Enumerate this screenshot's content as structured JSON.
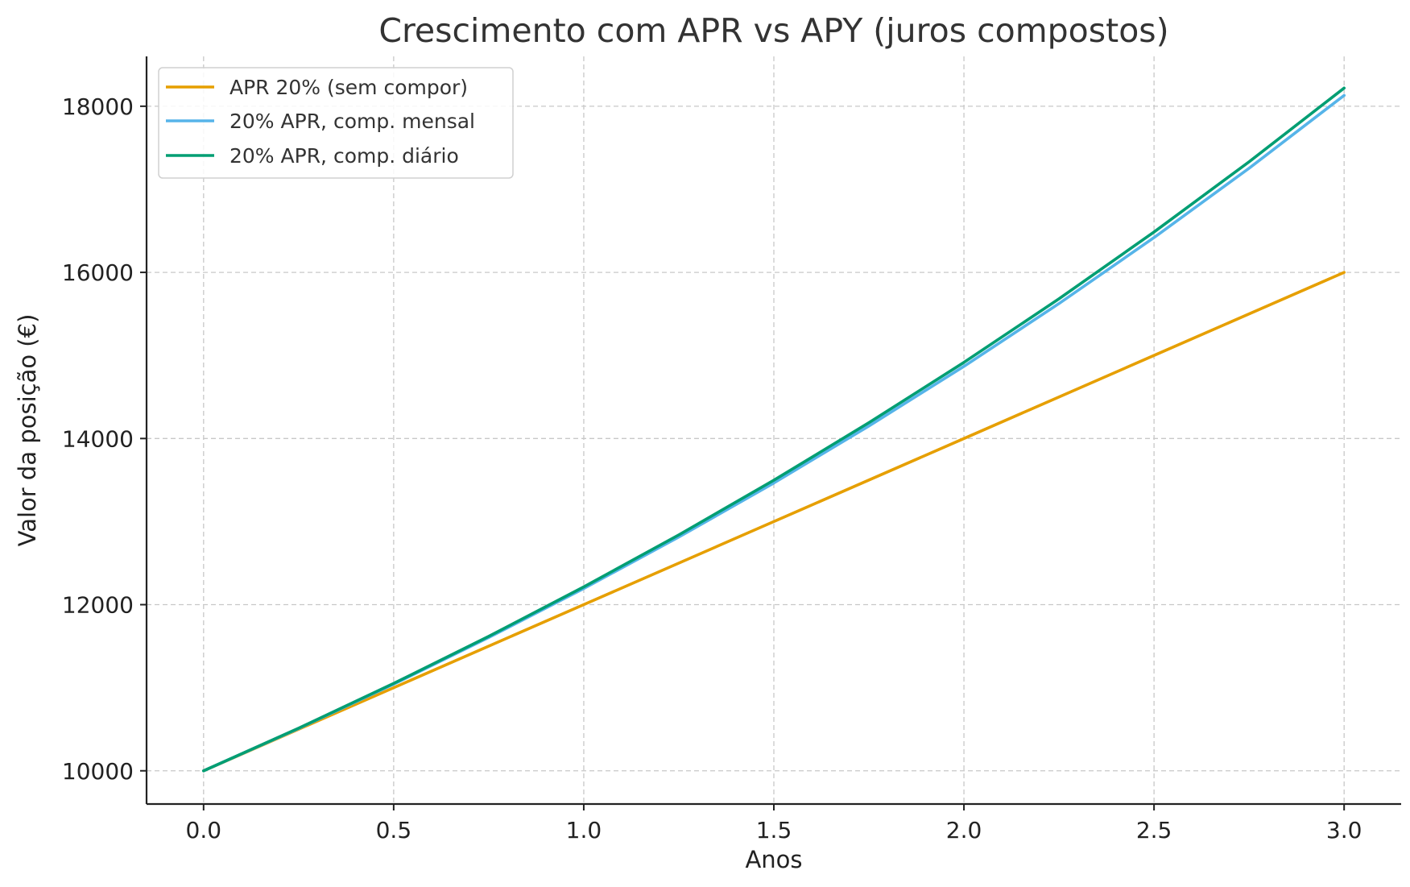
{
  "chart_data": {
    "type": "line",
    "title": "Crescimento com APR vs APY (juros compostos)",
    "xlabel": "Anos",
    "ylabel": "Valor da posição (€)",
    "xlim": [
      -0.15,
      3.15
    ],
    "ylim": [
      9600,
      18600
    ],
    "xticks": [
      0.0,
      0.5,
      1.0,
      1.5,
      2.0,
      2.5,
      3.0
    ],
    "xtick_labels": [
      "0.0",
      "0.5",
      "1.0",
      "1.5",
      "2.0",
      "2.5",
      "3.0"
    ],
    "yticks": [
      10000,
      12000,
      14000,
      16000,
      18000
    ],
    "ytick_labels": [
      "10000",
      "12000",
      "14000",
      "16000",
      "18000"
    ],
    "grid": true,
    "legend_position": "top-left",
    "series": [
      {
        "name": "APR 20% (sem compor)",
        "color": "#E69F00",
        "x": [
          0,
          0.5,
          1.0,
          1.5,
          2.0,
          2.5,
          3.0
        ],
        "y": [
          10000,
          11000,
          12000,
          13000,
          14000,
          15000,
          16000
        ]
      },
      {
        "name": "20% APR, comp. mensal",
        "color": "#56B4E9",
        "x": [
          0,
          0.25,
          0.5,
          0.75,
          1.0,
          1.25,
          1.5,
          1.75,
          2.0,
          2.25,
          2.5,
          2.75,
          3.0
        ],
        "y": [
          10000,
          10509,
          11043,
          11605,
          12194,
          12814,
          13465,
          14150,
          14869,
          15625,
          16419,
          17254,
          18131
        ]
      },
      {
        "name": "20% APR, comp. diário",
        "color": "#009E73",
        "x": [
          0,
          0.25,
          0.5,
          0.75,
          1.0,
          1.25,
          1.5,
          1.75,
          2.0,
          2.25,
          2.5,
          2.75,
          3.0
        ],
        "y": [
          10000,
          10513,
          11052,
          11618,
          12214,
          12840,
          13498,
          14190,
          14917,
          15682,
          16486,
          17331,
          18219
        ]
      }
    ]
  }
}
